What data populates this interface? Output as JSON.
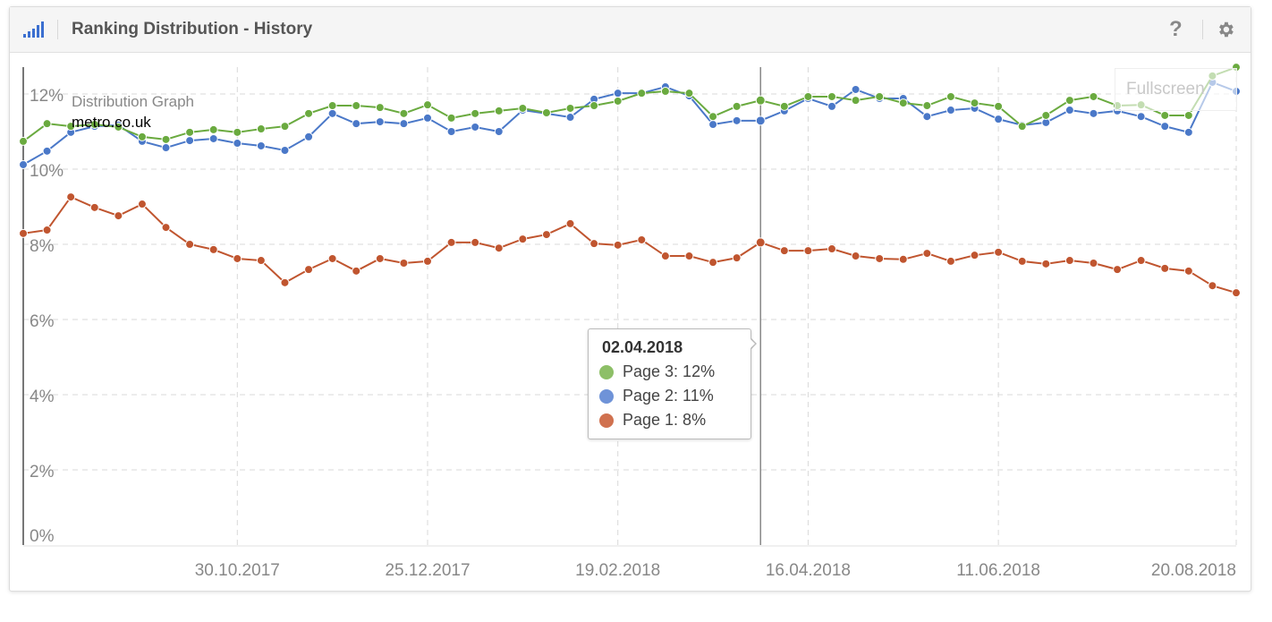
{
  "header": {
    "title": "Ranking Distribution - History",
    "help_label": "?",
    "icon": "bar-signal-icon",
    "settings_icon": "gear-icon"
  },
  "legend": {
    "title": "Distribution Graph",
    "site": "metro.co.uk"
  },
  "fullscreen_label": "Fullscreen",
  "tooltip": {
    "date": "02.04.2018",
    "rows": [
      {
        "label": "Page 3: 12%",
        "color": "#8dbf67"
      },
      {
        "label": "Page 2: 11%",
        "color": "#6f93d8"
      },
      {
        "label": "Page 1: 8%",
        "color": "#d0714f"
      }
    ]
  },
  "chart_data": {
    "type": "line",
    "ylim": [
      0,
      13
    ],
    "y_ticks": [
      "0%",
      "2%",
      "4%",
      "6%",
      "8%",
      "10%",
      "12%"
    ],
    "y_tick_values": [
      0,
      2,
      4,
      6,
      8,
      10,
      12
    ],
    "x_tick_labels": [
      "30.10.2017",
      "25.12.2017",
      "19.02.2018",
      "16.04.2018",
      "11.06.2018",
      "20.08.2018"
    ],
    "grid": true,
    "highlighted_date": "02.04.2018",
    "x": [
      "28.08.2017",
      "04.09.2017",
      "11.09.2017",
      "18.09.2017",
      "25.09.2017",
      "02.10.2017",
      "09.10.2017",
      "16.10.2017",
      "23.10.2017",
      "30.10.2017",
      "06.11.2017",
      "13.11.2017",
      "20.11.2017",
      "27.11.2017",
      "04.12.2017",
      "11.12.2017",
      "18.12.2017",
      "25.12.2017",
      "01.01.2018",
      "08.01.2018",
      "15.01.2018",
      "22.01.2018",
      "29.01.2018",
      "05.02.2018",
      "12.02.2018",
      "19.02.2018",
      "26.02.2018",
      "05.03.2018",
      "12.03.2018",
      "19.03.2018",
      "26.03.2018",
      "02.04.2018",
      "09.04.2018",
      "16.04.2018",
      "23.04.2018",
      "30.04.2018",
      "07.05.2018",
      "14.05.2018",
      "21.05.2018",
      "28.05.2018",
      "04.06.2018",
      "11.06.2018",
      "18.06.2018",
      "25.06.2018",
      "02.07.2018",
      "09.07.2018",
      "16.07.2018",
      "23.07.2018",
      "30.07.2018",
      "06.08.2018",
      "13.08.2018",
      "20.08.2018"
    ],
    "series": [
      {
        "name": "Page 3",
        "color": "#6aaa3f",
        "values": [
          10.74,
          11.21,
          11.14,
          11.19,
          11.12,
          10.86,
          10.79,
          10.98,
          11.05,
          10.98,
          11.07,
          11.14,
          11.48,
          11.69,
          11.69,
          11.64,
          11.48,
          11.71,
          11.36,
          11.48,
          11.55,
          11.62,
          11.5,
          11.62,
          11.69,
          11.81,
          12.02,
          12.07,
          12.02,
          11.4,
          11.67,
          11.83,
          11.67,
          11.93,
          11.93,
          11.83,
          11.93,
          11.76,
          11.69,
          11.93,
          11.76,
          11.67,
          11.14,
          11.43,
          11.83,
          11.93,
          11.69,
          11.71,
          11.43,
          11.43,
          12.48,
          12.71
        ]
      },
      {
        "name": "Page 2",
        "color": "#4a78c8",
        "values": [
          10.12,
          10.48,
          10.98,
          11.14,
          11.17,
          10.74,
          10.57,
          10.76,
          10.81,
          10.69,
          10.62,
          10.5,
          10.86,
          11.48,
          11.21,
          11.26,
          11.21,
          11.36,
          11.0,
          11.12,
          11.0,
          11.57,
          11.48,
          11.38,
          11.86,
          12.02,
          12.02,
          12.19,
          11.95,
          11.19,
          11.29,
          11.29,
          11.55,
          11.88,
          11.67,
          12.12,
          11.88,
          11.88,
          11.4,
          11.57,
          11.62,
          11.33,
          11.17,
          11.24,
          11.57,
          11.48,
          11.55,
          11.4,
          11.14,
          10.98,
          12.31,
          12.07
        ]
      },
      {
        "name": "Page 1",
        "color": "#c0552f",
        "values": [
          8.29,
          8.38,
          9.26,
          8.98,
          8.76,
          9.07,
          8.45,
          8.0,
          7.86,
          7.62,
          7.57,
          6.98,
          7.33,
          7.62,
          7.29,
          7.62,
          7.5,
          7.55,
          8.05,
          8.05,
          7.9,
          8.14,
          8.26,
          8.55,
          8.02,
          7.98,
          8.12,
          7.69,
          7.69,
          7.52,
          7.64,
          8.05,
          7.83,
          7.83,
          7.88,
          7.69,
          7.62,
          7.6,
          7.76,
          7.55,
          7.71,
          7.79,
          7.55,
          7.48,
          7.57,
          7.5,
          7.33,
          7.57,
          7.36,
          7.29,
          6.9,
          6.71
        ]
      }
    ]
  }
}
